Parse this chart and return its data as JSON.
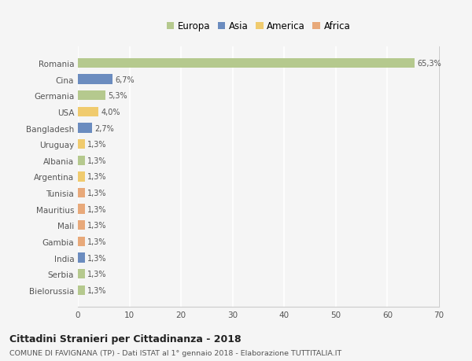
{
  "categories": [
    "Romania",
    "Cina",
    "Germania",
    "USA",
    "Bangladesh",
    "Uruguay",
    "Albania",
    "Argentina",
    "Tunisia",
    "Mauritius",
    "Mali",
    "Gambia",
    "India",
    "Serbia",
    "Bielorussia"
  ],
  "values": [
    65.3,
    6.7,
    5.3,
    4.0,
    2.7,
    1.3,
    1.3,
    1.3,
    1.3,
    1.3,
    1.3,
    1.3,
    1.3,
    1.3,
    1.3
  ],
  "labels": [
    "65,3%",
    "6,7%",
    "5,3%",
    "4,0%",
    "2,7%",
    "1,3%",
    "1,3%",
    "1,3%",
    "1,3%",
    "1,3%",
    "1,3%",
    "1,3%",
    "1,3%",
    "1,3%",
    "1,3%"
  ],
  "continent_colors": {
    "Europa": "#b5c98e",
    "Asia": "#6b8cbf",
    "America": "#f0cb6e",
    "Africa": "#e8a97a"
  },
  "bar_colors": [
    "#b5c98e",
    "#6b8cbf",
    "#b5c98e",
    "#f0cb6e",
    "#6b8cbf",
    "#f0cb6e",
    "#b5c98e",
    "#f0cb6e",
    "#e8a97a",
    "#e8a97a",
    "#e8a97a",
    "#e8a97a",
    "#6b8cbf",
    "#b5c98e",
    "#b5c98e"
  ],
  "xlim": [
    0,
    70
  ],
  "xticks": [
    0,
    10,
    20,
    30,
    40,
    50,
    60,
    70
  ],
  "title": "Cittadini Stranieri per Cittadinanza - 2018",
  "subtitle": "COMUNE DI FAVIGNANA (TP) - Dati ISTAT al 1° gennaio 2018 - Elaborazione TUTTITALIA.IT",
  "bg_color": "#f5f5f5",
  "grid_color": "#ffffff",
  "legend_labels": [
    "Europa",
    "Asia",
    "America",
    "Africa"
  ]
}
